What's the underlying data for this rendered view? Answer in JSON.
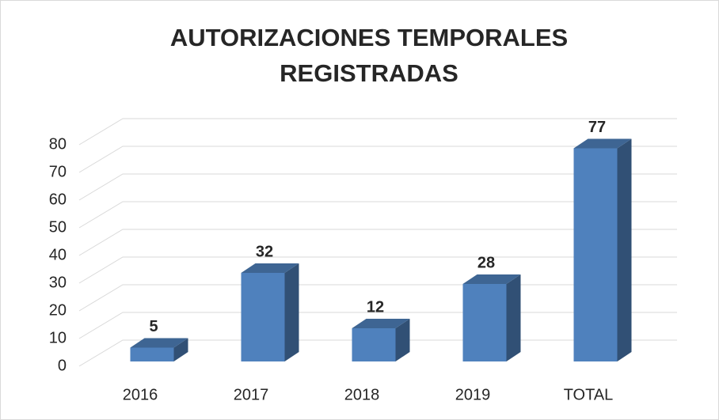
{
  "chart_data": {
    "type": "bar3d",
    "title": [
      "AUTORIZACIONES TEMPORALES",
      "REGISTRADAS"
    ],
    "categories": [
      "2016",
      "2017",
      "2018",
      "2019",
      "TOTAL"
    ],
    "values": [
      5,
      32,
      12,
      28,
      77
    ],
    "color": "#4f81bd",
    "ylim": [
      0,
      80
    ],
    "yticks": [
      0,
      10,
      20,
      30,
      40,
      50,
      60,
      70,
      80
    ],
    "grid": true
  }
}
